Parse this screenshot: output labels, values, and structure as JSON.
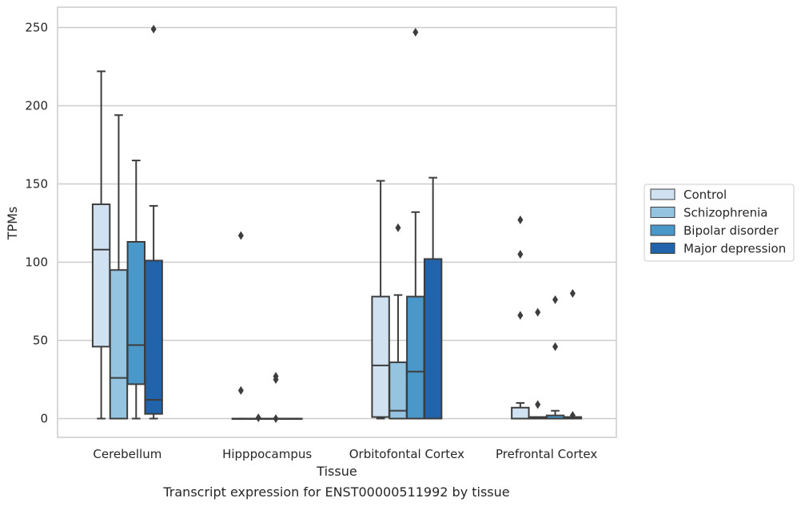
{
  "chart_data": {
    "type": "boxplot",
    "title": "",
    "caption": "Transcript expression for ENST00000511992 by tissue",
    "xlabel": "Tissue",
    "ylabel": "TPMs",
    "ylim": [
      -12,
      263
    ],
    "yticks": [
      0,
      50,
      100,
      150,
      200,
      250
    ],
    "grid": "horizontal",
    "legend_position": "right",
    "categories": [
      "Cerebellum",
      "Hipppocampus",
      "Orbitofontal Cortex",
      "Prefrontal Cortex"
    ],
    "series": [
      {
        "name": "Control",
        "color": "#d0e1f2",
        "boxes": [
          {
            "whislo": 0,
            "q1": 46,
            "med": 108,
            "q3": 137,
            "whishi": 222,
            "fliers": []
          },
          {
            "whislo": 0,
            "q1": 0,
            "med": 0,
            "q3": 0,
            "whishi": 0,
            "fliers": [
              117,
              18
            ]
          },
          {
            "whislo": 0,
            "q1": 1,
            "med": 34,
            "q3": 78,
            "whishi": 152,
            "fliers": []
          },
          {
            "whislo": 0,
            "q1": 0,
            "med": 0,
            "q3": 7,
            "whishi": 10,
            "fliers": [
              127,
              105,
              66
            ]
          }
        ]
      },
      {
        "name": "Schizophrenia",
        "color": "#94c4df",
        "boxes": [
          {
            "whislo": 0,
            "q1": 0,
            "med": 26,
            "q3": 95,
            "whishi": 194,
            "fliers": []
          },
          {
            "whislo": 0,
            "q1": 0,
            "med": 0,
            "q3": 0,
            "whishi": 0,
            "fliers": [
              0.5
            ]
          },
          {
            "whislo": 0,
            "q1": 0,
            "med": 5,
            "q3": 36,
            "whishi": 79,
            "fliers": [
              122
            ]
          },
          {
            "whislo": 0,
            "q1": 0,
            "med": 0,
            "q3": 1,
            "whishi": 1,
            "fliers": [
              68,
              9
            ]
          }
        ]
      },
      {
        "name": "Bipolar disorder",
        "color": "#4a98c9",
        "boxes": [
          {
            "whislo": 0,
            "q1": 22,
            "med": 47,
            "q3": 113,
            "whishi": 165,
            "fliers": []
          },
          {
            "whislo": 0,
            "q1": 0,
            "med": 0,
            "q3": 0,
            "whishi": 0,
            "fliers": [
              27,
              25,
              0
            ]
          },
          {
            "whislo": 0,
            "q1": 0,
            "med": 30,
            "q3": 78,
            "whishi": 132,
            "fliers": [
              247
            ]
          },
          {
            "whislo": 0,
            "q1": 0,
            "med": 0,
            "q3": 2,
            "whishi": 5,
            "fliers": [
              76,
              46
            ]
          }
        ]
      },
      {
        "name": "Major depression",
        "color": "#2164ab",
        "boxes": [
          {
            "whislo": 0,
            "q1": 3,
            "med": 12,
            "q3": 101,
            "whishi": 136,
            "fliers": [
              249
            ]
          },
          {
            "whislo": 0,
            "q1": 0,
            "med": 0,
            "q3": 0,
            "whishi": 0,
            "fliers": []
          },
          {
            "whislo": 0,
            "q1": 0,
            "med": 102,
            "q3": 102,
            "whishi": 154,
            "fliers": []
          },
          {
            "whislo": 0,
            "q1": 0,
            "med": 0,
            "q3": 1,
            "whishi": 1,
            "fliers": [
              80,
              2
            ]
          }
        ]
      }
    ]
  }
}
